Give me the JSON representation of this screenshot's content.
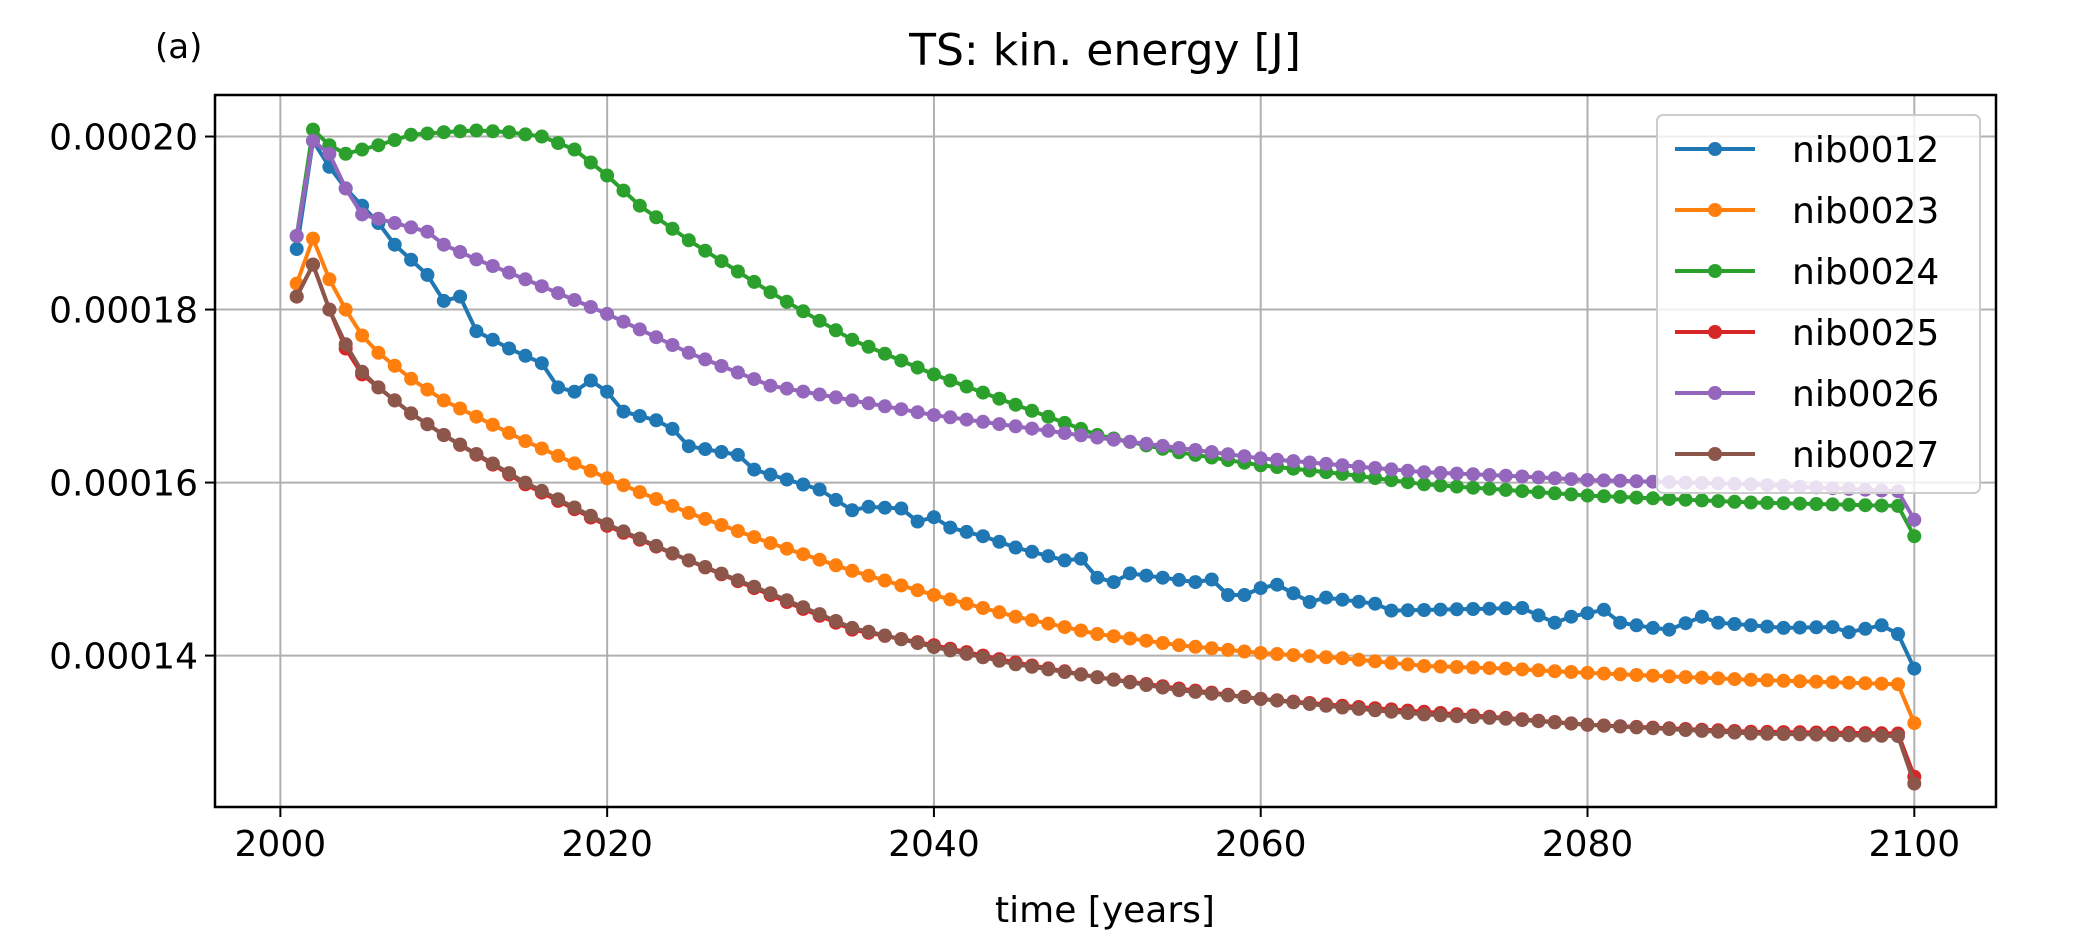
{
  "chart_data": {
    "type": "line",
    "panel_label": "(a)",
    "title": "TS: kin. energy [J]",
    "xlabel": "time [years]",
    "ylabel": "",
    "xlim": [
      1996,
      2105
    ],
    "ylim": [
      0.0001225,
      0.0002048
    ],
    "xticks": [
      2000,
      2020,
      2040,
      2060,
      2080,
      2100
    ],
    "yticks": [
      0.00014,
      0.00016,
      0.00018,
      0.0002
    ],
    "ytick_labels": [
      "0.00014",
      "0.00016",
      "0.00018",
      "0.00020"
    ],
    "grid": true,
    "legend_position": "top-right",
    "x_start": 2001,
    "x_end": 2100,
    "series": [
      {
        "name": "nib0012",
        "color": "#1f77b4",
        "anchors": [
          [
            2001,
            0.000187
          ],
          [
            2002,
            0.0001995
          ],
          [
            2003,
            0.0001965
          ],
          [
            2004,
            0.000194
          ],
          [
            2006,
            0.00019
          ],
          [
            2007,
            0.0001875
          ],
          [
            2009,
            0.000184
          ],
          [
            2010,
            0.000181
          ],
          [
            2011,
            0.0001815
          ],
          [
            2012,
            0.0001775
          ],
          [
            2014,
            0.0001755
          ],
          [
            2016,
            0.0001738
          ],
          [
            2017,
            0.000171
          ],
          [
            2018,
            0.0001705
          ],
          [
            2019,
            0.0001718
          ],
          [
            2020,
            0.0001705
          ],
          [
            2021,
            0.0001682
          ],
          [
            2023,
            0.0001672
          ],
          [
            2024,
            0.0001662
          ],
          [
            2025,
            0.0001642
          ],
          [
            2028,
            0.0001632
          ],
          [
            2029,
            0.0001615
          ],
          [
            2033,
            0.0001592
          ],
          [
            2035,
            0.0001568
          ],
          [
            2036,
            0.0001572
          ],
          [
            2038,
            0.000157
          ],
          [
            2039,
            0.0001555
          ],
          [
            2040,
            0.000156
          ],
          [
            2041,
            0.0001548
          ],
          [
            2043,
            0.0001538
          ],
          [
            2045,
            0.0001525
          ],
          [
            2048,
            0.000151
          ],
          [
            2049,
            0.0001512
          ],
          [
            2050,
            0.000149
          ],
          [
            2051,
            0.0001485
          ],
          [
            2052,
            0.0001495
          ],
          [
            2056,
            0.0001485
          ],
          [
            2057,
            0.0001488
          ],
          [
            2058,
            0.000147
          ],
          [
            2059,
            0.000147
          ],
          [
            2060,
            0.0001478
          ],
          [
            2061,
            0.0001482
          ],
          [
            2063,
            0.0001462
          ],
          [
            2064,
            0.0001467
          ],
          [
            2067,
            0.000146
          ],
          [
            2068,
            0.0001452
          ],
          [
            2076,
            0.0001455
          ],
          [
            2078,
            0.0001438
          ],
          [
            2079,
            0.0001445
          ],
          [
            2081,
            0.0001453
          ],
          [
            2082,
            0.0001438
          ],
          [
            2084,
            0.0001432
          ],
          [
            2085,
            0.000143
          ],
          [
            2087,
            0.0001445
          ],
          [
            2088,
            0.0001438
          ],
          [
            2090,
            0.0001435
          ],
          [
            2092,
            0.0001432
          ],
          [
            2095,
            0.0001433
          ],
          [
            2096,
            0.0001427
          ],
          [
            2098,
            0.0001435
          ],
          [
            2099,
            0.0001425
          ],
          [
            2100,
            0.0001385
          ]
        ]
      },
      {
        "name": "nib0023",
        "color": "#ff7f0e",
        "anchors": [
          [
            2001,
            0.000183
          ],
          [
            2002,
            0.0001882
          ],
          [
            2003,
            0.0001835
          ],
          [
            2004,
            0.00018
          ],
          [
            2005,
            0.000177
          ],
          [
            2006,
            0.000175
          ],
          [
            2008,
            0.000172
          ],
          [
            2010,
            0.0001695
          ],
          [
            2015,
            0.0001648
          ],
          [
            2020,
            0.0001605
          ],
          [
            2025,
            0.0001565
          ],
          [
            2030,
            0.000153
          ],
          [
            2035,
            0.0001498
          ],
          [
            2040,
            0.000147
          ],
          [
            2045,
            0.0001445
          ],
          [
            2050,
            0.0001425
          ],
          [
            2055,
            0.0001412
          ],
          [
            2060,
            0.0001403
          ],
          [
            2065,
            0.0001397
          ],
          [
            2070,
            0.0001388
          ],
          [
            2075,
            0.0001385
          ],
          [
            2080,
            0.000138
          ],
          [
            2090,
            0.0001372
          ],
          [
            2099,
            0.0001367
          ],
          [
            2100,
            0.0001322
          ]
        ]
      },
      {
        "name": "nib0024",
        "color": "#2ca02c",
        "anchors": [
          [
            2001,
            0.0001885
          ],
          [
            2002,
            0.0002008
          ],
          [
            2003,
            0.000199
          ],
          [
            2004,
            0.000198
          ],
          [
            2006,
            0.000199
          ],
          [
            2008,
            0.0002002
          ],
          [
            2010,
            0.0002005
          ],
          [
            2012,
            0.0002007
          ],
          [
            2014,
            0.0002005
          ],
          [
            2016,
            0.0002
          ],
          [
            2018,
            0.0001985
          ],
          [
            2020,
            0.0001955
          ],
          [
            2022,
            0.000192
          ],
          [
            2025,
            0.000188
          ],
          [
            2030,
            0.000182
          ],
          [
            2035,
            0.0001765
          ],
          [
            2040,
            0.0001725
          ],
          [
            2045,
            0.000169
          ],
          [
            2050,
            0.0001655
          ],
          [
            2055,
            0.0001635
          ],
          [
            2060,
            0.000162
          ],
          [
            2065,
            0.000161
          ],
          [
            2070,
            0.0001598
          ],
          [
            2080,
            0.0001585
          ],
          [
            2090,
            0.0001577
          ],
          [
            2099,
            0.0001573
          ],
          [
            2100,
            0.0001538
          ]
        ]
      },
      {
        "name": "nib0025",
        "color": "#d62728",
        "anchors": [
          [
            2001,
            0.0001815
          ],
          [
            2002,
            0.0001852
          ],
          [
            2003,
            0.00018
          ],
          [
            2004,
            0.0001755
          ],
          [
            2005,
            0.0001725
          ],
          [
            2006,
            0.000171
          ],
          [
            2008,
            0.000168
          ],
          [
            2010,
            0.0001655
          ],
          [
            2015,
            0.0001598
          ],
          [
            2020,
            0.000155
          ],
          [
            2025,
            0.000151
          ],
          [
            2030,
            0.000147
          ],
          [
            2035,
            0.000143
          ],
          [
            2040,
            0.0001412
          ],
          [
            2045,
            0.0001392
          ],
          [
            2050,
            0.0001375
          ],
          [
            2055,
            0.0001362
          ],
          [
            2060,
            0.000135
          ],
          [
            2065,
            0.0001342
          ],
          [
            2070,
            0.0001335
          ],
          [
            2075,
            0.0001328
          ],
          [
            2080,
            0.000132
          ],
          [
            2090,
            0.0001312
          ],
          [
            2099,
            0.000131
          ],
          [
            2100,
            0.000126
          ]
        ]
      },
      {
        "name": "nib0026",
        "color": "#9467bd",
        "anchors": [
          [
            2001,
            0.0001885
          ],
          [
            2002,
            0.0001995
          ],
          [
            2003,
            0.000198
          ],
          [
            2004,
            0.000194
          ],
          [
            2005,
            0.000191
          ],
          [
            2007,
            0.00019
          ],
          [
            2009,
            0.000189
          ],
          [
            2010,
            0.0001875
          ],
          [
            2012,
            0.0001858
          ],
          [
            2015,
            0.0001835
          ],
          [
            2020,
            0.0001795
          ],
          [
            2025,
            0.000175
          ],
          [
            2030,
            0.0001712
          ],
          [
            2035,
            0.0001695
          ],
          [
            2040,
            0.0001678
          ],
          [
            2045,
            0.0001665
          ],
          [
            2050,
            0.0001652
          ],
          [
            2055,
            0.000164
          ],
          [
            2060,
            0.0001628
          ],
          [
            2065,
            0.000162
          ],
          [
            2070,
            0.0001612
          ],
          [
            2075,
            0.0001608
          ],
          [
            2080,
            0.0001603
          ],
          [
            2090,
            0.0001598
          ],
          [
            2099,
            0.000159
          ],
          [
            2100,
            0.0001557
          ]
        ]
      },
      {
        "name": "nib0027",
        "color": "#8c564b",
        "anchors": [
          [
            2001,
            0.0001815
          ],
          [
            2002,
            0.0001852
          ],
          [
            2003,
            0.00018
          ],
          [
            2004,
            0.000176
          ],
          [
            2005,
            0.0001728
          ],
          [
            2006,
            0.000171
          ],
          [
            2008,
            0.000168
          ],
          [
            2010,
            0.0001655
          ],
          [
            2015,
            0.00016
          ],
          [
            2020,
            0.0001552
          ],
          [
            2025,
            0.000151
          ],
          [
            2030,
            0.0001472
          ],
          [
            2035,
            0.0001432
          ],
          [
            2040,
            0.000141
          ],
          [
            2045,
            0.000139
          ],
          [
            2050,
            0.0001375
          ],
          [
            2055,
            0.000136
          ],
          [
            2060,
            0.000135
          ],
          [
            2065,
            0.000134
          ],
          [
            2070,
            0.0001332
          ],
          [
            2075,
            0.0001327
          ],
          [
            2080,
            0.000132
          ],
          [
            2090,
            0.000131
          ],
          [
            2099,
            0.0001307
          ],
          [
            2100,
            0.0001252
          ]
        ]
      }
    ]
  }
}
